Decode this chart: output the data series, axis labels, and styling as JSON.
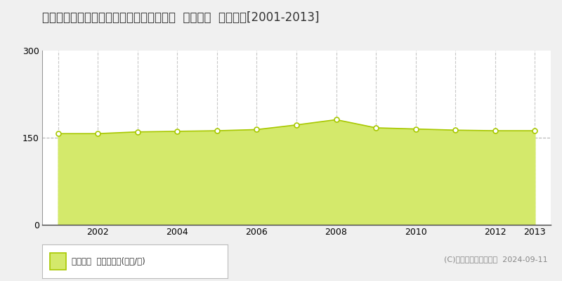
{
  "title": "東京都大田区田園調布２丁目２４番２６外  地価公示  地価推移[2001-2013]",
  "years": [
    2001,
    2002,
    2003,
    2004,
    2005,
    2006,
    2007,
    2008,
    2009,
    2010,
    2011,
    2012,
    2013
  ],
  "values": [
    157,
    157,
    160,
    161,
    162,
    164,
    172,
    181,
    167,
    165,
    163,
    162,
    162
  ],
  "fill_color": "#d4e96b",
  "line_color": "#a8c800",
  "marker_facecolor": "#ffffff",
  "marker_edgecolor": "#a8c800",
  "ylim": [
    0,
    300
  ],
  "yticks": [
    0,
    150,
    300
  ],
  "bg_color": "#f0f0f0",
  "plot_bg_color": "#ffffff",
  "grid_color_h": "#b0b0b0",
  "grid_color_v": "#c8c8c8",
  "title_fontsize": 12,
  "tick_fontsize": 9,
  "legend_label": "地価公示  平均崪単価(万円/崪)",
  "copyright_text": "(C)土地価格ドットコム  2024-09-11",
  "xtick_labels": [
    2002,
    2004,
    2006,
    2008,
    2010,
    2012,
    2013
  ],
  "vgrid_years": [
    2001,
    2002,
    2003,
    2004,
    2005,
    2006,
    2007,
    2008,
    2009,
    2010,
    2011,
    2012,
    2013
  ]
}
